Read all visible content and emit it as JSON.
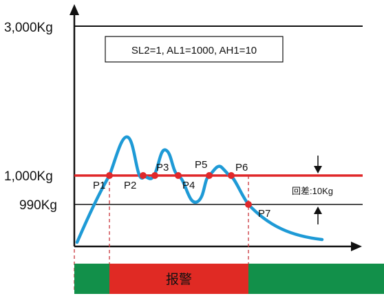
{
  "y_axis_labels": {
    "max": "3,000Kg",
    "alarm_high": "1,000Kg",
    "alarm_low": "990Kg"
  },
  "parameters_box": "SL2=1, AL1=1000, AH1=10",
  "hysteresis_label": "回差:10Kg",
  "points": [
    "P1",
    "P2",
    "P3",
    "P4",
    "P5",
    "P6",
    "P7"
  ],
  "status_bar": {
    "alarm_label": "报警"
  },
  "colors": {
    "curve": "#1e9ad6",
    "alarm_line": "#e0282a",
    "alarm_band": "#e02a24",
    "normal_band": "#12904a",
    "point": "#e0282a"
  },
  "icons": [
    "arrow-down-icon",
    "arrow-up-icon"
  ]
}
